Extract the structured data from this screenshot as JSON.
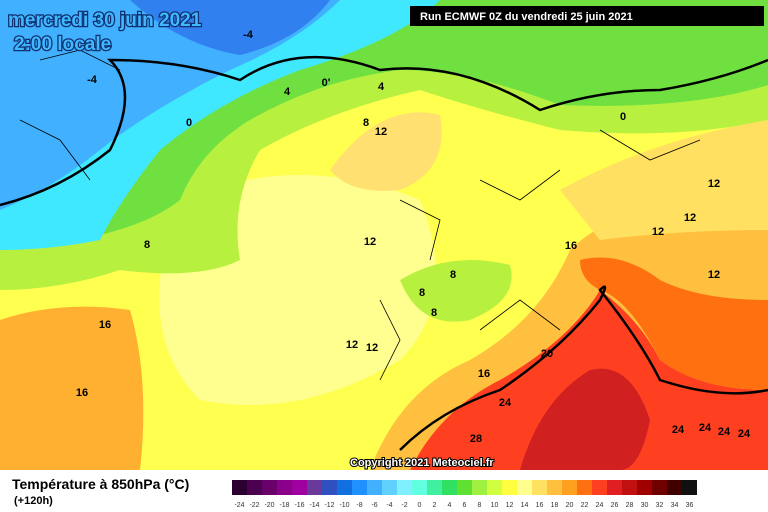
{
  "header": {
    "date": "mercredi 30 juin 2021",
    "time": "2:00 locale",
    "run": "Run ECMWF 0Z du vendredi 25 juin 2021"
  },
  "map": {
    "contour_labels": [
      "-4",
      "-4",
      "4",
      "0'",
      "4",
      "0",
      "8",
      "12",
      "0",
      "12",
      "12",
      "12",
      "12",
      "16",
      "12",
      "8",
      "8",
      "8",
      "8",
      "16",
      "12",
      "12",
      "20",
      "16",
      "16",
      "24",
      "28",
      "24",
      "24",
      "24",
      "24"
    ]
  },
  "copyright": "Copyright 2021 Meteociel.fr",
  "legend": {
    "title": "Température à 850hPa (°C)",
    "lead_time": "(+120h)",
    "labels": [
      "-24",
      "-22",
      "-20",
      "-18",
      "-16",
      "-14",
      "-12",
      "-10",
      "-8",
      "-6",
      "-4",
      "-2",
      "0",
      "2",
      "4",
      "6",
      "8",
      "10",
      "12",
      "14",
      "16",
      "18",
      "20",
      "22",
      "24",
      "26",
      "28",
      "30",
      "32",
      "34",
      "36"
    ],
    "colors": [
      "#2b0030",
      "#4b0050",
      "#6a006a",
      "#8a008a",
      "#a000a0",
      "#6a3a9a",
      "#3050c0",
      "#1070e0",
      "#2090ff",
      "#40b0ff",
      "#60d0ff",
      "#80f0ff",
      "#60ffe0",
      "#40f0a0",
      "#30e060",
      "#60e030",
      "#a0f040",
      "#d0ff40",
      "#ffff40",
      "#ffff90",
      "#ffe060",
      "#ffc040",
      "#ffa020",
      "#ff7010",
      "#ff4020",
      "#e02020",
      "#c01010",
      "#a00000",
      "#700000",
      "#400000",
      "#101010"
    ]
  }
}
